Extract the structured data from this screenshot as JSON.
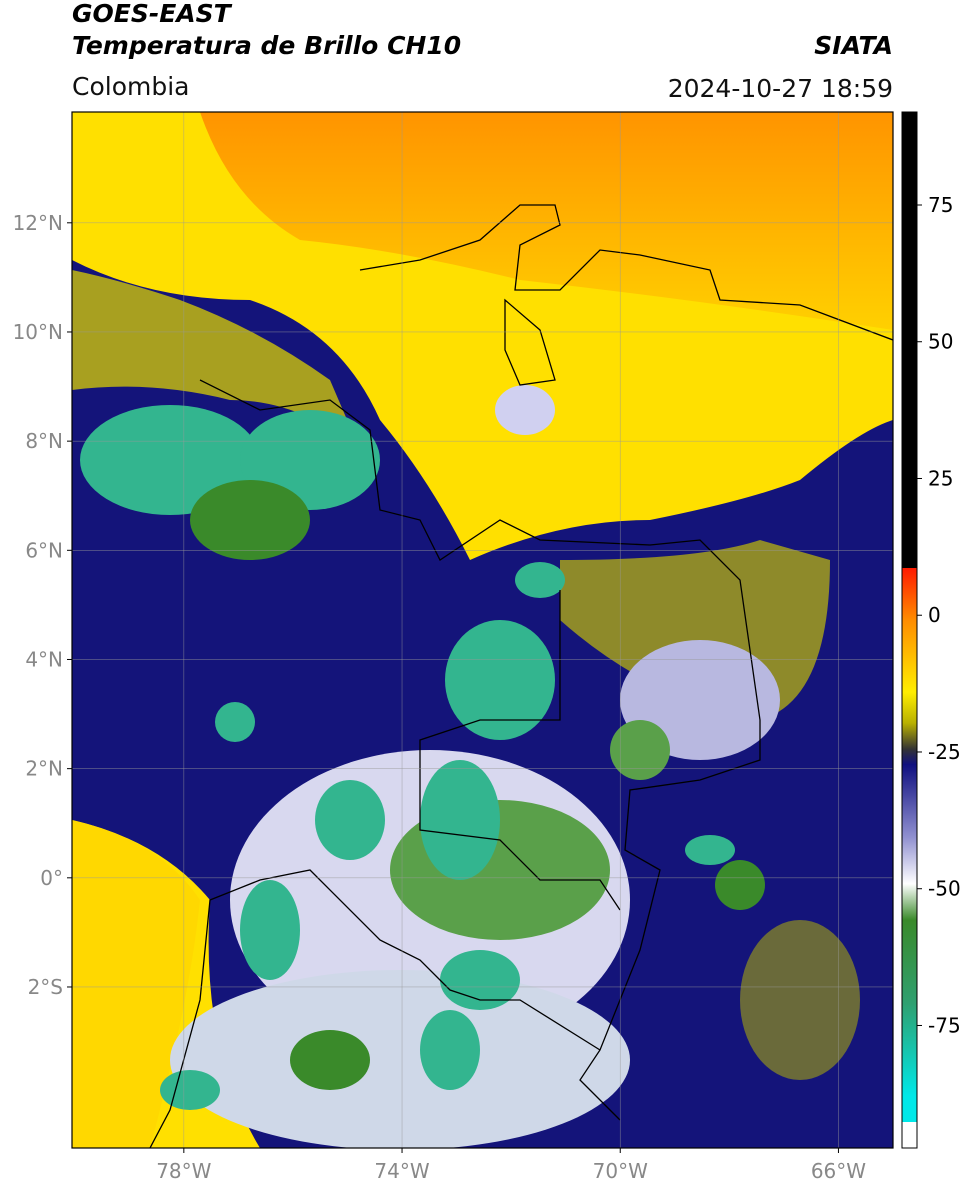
{
  "header": {
    "title_line1": "GOES-EAST",
    "title_line2": "Temperatura de Brillo CH10",
    "source": "SIATA",
    "region": "Colombia",
    "timestamp": "2024-10-27 18:59"
  },
  "map": {
    "xlim": [
      -80.05,
      -65
    ],
    "ylim": [
      -4.95,
      14.03
    ],
    "xticks": [
      {
        "value": -78,
        "label": "78°W"
      },
      {
        "value": -74,
        "label": "74°W"
      },
      {
        "value": -70,
        "label": "70°W"
      },
      {
        "value": -66,
        "label": "66°W"
      }
    ],
    "yticks": [
      {
        "value": 12,
        "label": "12°N"
      },
      {
        "value": 10,
        "label": "10°N"
      },
      {
        "value": 8,
        "label": "8°N"
      },
      {
        "value": 6,
        "label": "6°N"
      },
      {
        "value": 4,
        "label": "4°N"
      },
      {
        "value": 2,
        "label": "2°N"
      },
      {
        "value": 0,
        "label": "0°"
      },
      {
        "value": -2,
        "label": "2°S"
      }
    ],
    "grid": true
  },
  "colorbar": {
    "lim": [
      -97.4,
      92
    ],
    "ticks": [
      75,
      50,
      25,
      0,
      -25,
      -50,
      -75
    ]
  }
}
